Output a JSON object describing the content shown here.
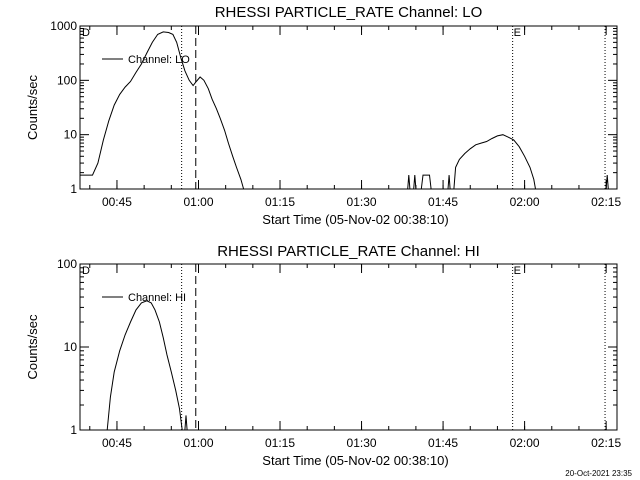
{
  "stamp": "20-Oct-2021 23:35",
  "chart_data": [
    {
      "type": "line",
      "title": "RHESSI PARTICLE_RATE Channel: LO",
      "xlabel": "Start Time (05-Nov-02 00:38:10)",
      "ylabel": "Counts/sec",
      "yscale": "log",
      "ylim": [
        1,
        1000
      ],
      "xlim_min": [
        38.2,
        137.0
      ],
      "yticks": [
        {
          "v": 1,
          "label": "1"
        },
        {
          "v": 10,
          "label": "10"
        },
        {
          "v": 100,
          "label": "100"
        },
        {
          "v": 1000,
          "label": "1000"
        }
      ],
      "xticks": [
        {
          "t": 45,
          "label": "00:45"
        },
        {
          "t": 60,
          "label": "01:00"
        },
        {
          "t": 75,
          "label": "01:15"
        },
        {
          "t": 90,
          "label": "01:30"
        },
        {
          "t": 105,
          "label": "01:45"
        },
        {
          "t": 120,
          "label": "02:00"
        },
        {
          "t": 135,
          "label": "02:15"
        }
      ],
      "legend": "Channel: LO",
      "markers": [
        {
          "t": 56.9,
          "style": "dotted",
          "label": ""
        },
        {
          "t": 59.5,
          "style": "dashed",
          "label": ""
        },
        {
          "t": 117.8,
          "style": "dotted",
          "label": "E"
        },
        {
          "t": 134.8,
          "style": "dotted",
          "label": ""
        }
      ],
      "corner_label": "D",
      "series": [
        {
          "name": "LO",
          "segments": [
            [
              [
                38.2,
                1.8
              ],
              [
                40.5,
                1.8
              ],
              [
                41.5,
                3
              ],
              [
                42.5,
                8
              ],
              [
                43.5,
                18
              ],
              [
                44.5,
                35
              ],
              [
                45.5,
                55
              ],
              [
                46.5,
                75
              ],
              [
                47.5,
                95
              ],
              [
                48.5,
                140
              ],
              [
                49.5,
                200
              ],
              [
                50.5,
                320
              ],
              [
                51.5,
                500
              ],
              [
                52.5,
                700
              ],
              [
                53.5,
                780
              ],
              [
                54.5,
                760
              ],
              [
                55.3,
                700
              ],
              [
                56,
                500
              ],
              [
                56.8,
                250
              ],
              [
                57.5,
                150
              ],
              [
                58.3,
                100
              ],
              [
                59,
                80
              ],
              [
                59.6,
                95
              ],
              [
                60.3,
                115
              ],
              [
                61,
                100
              ],
              [
                61.8,
                70
              ],
              [
                62.5,
                45
              ],
              [
                63.3,
                30
              ],
              [
                64,
                20
              ],
              [
                64.8,
                12
              ],
              [
                65.5,
                7
              ],
              [
                66.3,
                4
              ],
              [
                67,
                2.5
              ],
              [
                67.8,
                1.5
              ],
              [
                68.3,
                1
              ]
            ],
            [
              [
                98.5,
                1
              ],
              [
                98.7,
                1.8
              ],
              [
                98.9,
                1
              ]
            ],
            [
              [
                99.6,
                1
              ],
              [
                99.8,
                1.8
              ],
              [
                100,
                1
              ]
            ],
            [
              [
                101,
                1
              ],
              [
                101.3,
                1.8
              ],
              [
                102.5,
                1.8
              ],
              [
                102.8,
                1
              ]
            ],
            [
              [
                105.9,
                1
              ],
              [
                106.1,
                1.8
              ],
              [
                106.3,
                1
              ]
            ],
            [
              [
                107,
                1
              ],
              [
                107.3,
                2.5
              ],
              [
                108,
                3.5
              ],
              [
                109,
                4.5
              ],
              [
                110,
                5.5
              ],
              [
                111,
                6.5
              ],
              [
                112,
                7
              ],
              [
                113,
                7.5
              ],
              [
                114,
                8.5
              ],
              [
                115,
                9.5
              ],
              [
                116,
                10
              ],
              [
                117,
                9
              ],
              [
                118,
                8
              ],
              [
                119,
                6
              ],
              [
                120,
                4
              ],
              [
                121,
                2.5
              ],
              [
                121.7,
                1.5
              ],
              [
                122,
                1
              ]
            ],
            [
              [
                135,
                1
              ],
              [
                135.2,
                1.8
              ],
              [
                135.4,
                1
              ]
            ]
          ]
        }
      ]
    },
    {
      "type": "line",
      "title": "RHESSI PARTICLE_RATE Channel: HI",
      "xlabel": "Start Time (05-Nov-02 00:38:10)",
      "ylabel": "Counts/sec",
      "yscale": "log",
      "ylim": [
        1,
        100
      ],
      "xlim_min": [
        38.2,
        137.0
      ],
      "yticks": [
        {
          "v": 1,
          "label": "1"
        },
        {
          "v": 10,
          "label": "10"
        },
        {
          "v": 100,
          "label": "100"
        }
      ],
      "xticks": [
        {
          "t": 45,
          "label": "00:45"
        },
        {
          "t": 60,
          "label": "01:00"
        },
        {
          "t": 75,
          "label": "01:15"
        },
        {
          "t": 90,
          "label": "01:30"
        },
        {
          "t": 105,
          "label": "01:45"
        },
        {
          "t": 120,
          "label": "02:00"
        },
        {
          "t": 135,
          "label": "02:15"
        }
      ],
      "legend": "Channel: HI",
      "markers": [
        {
          "t": 56.9,
          "style": "dotted",
          "label": ""
        },
        {
          "t": 59.5,
          "style": "dashed",
          "label": ""
        },
        {
          "t": 117.8,
          "style": "dotted",
          "label": "E"
        },
        {
          "t": 134.8,
          "style": "dotted",
          "label": ""
        }
      ],
      "corner_label": "D",
      "series": [
        {
          "name": "HI",
          "segments": [
            [
              [
                43.2,
                1
              ],
              [
                43.8,
                2.5
              ],
              [
                44.5,
                5
              ],
              [
                45.5,
                9
              ],
              [
                46.5,
                14
              ],
              [
                47.5,
                20
              ],
              [
                48.5,
                28
              ],
              [
                49.5,
                34
              ],
              [
                50.5,
                36
              ],
              [
                51.3,
                34
              ],
              [
                52,
                28
              ],
              [
                52.8,
                20
              ],
              [
                53.5,
                13
              ],
              [
                54.2,
                8
              ],
              [
                55,
                5
              ],
              [
                55.8,
                3
              ],
              [
                56.5,
                1.8
              ],
              [
                57,
                1
              ]
            ],
            [
              [
                57.5,
                1
              ],
              [
                57.7,
                1.5
              ],
              [
                57.9,
                1
              ]
            ]
          ]
        }
      ]
    }
  ]
}
